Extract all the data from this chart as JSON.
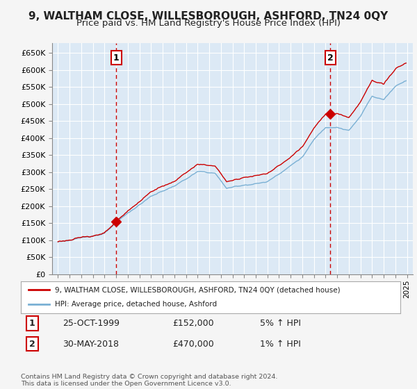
{
  "title": "9, WALTHAM CLOSE, WILLESBOROUGH, ASHFORD, TN24 0QY",
  "subtitle": "Price paid vs. HM Land Registry's House Price Index (HPI)",
  "ylim": [
    0,
    680000
  ],
  "yticks": [
    0,
    50000,
    100000,
    150000,
    200000,
    250000,
    300000,
    350000,
    400000,
    450000,
    500000,
    550000,
    600000,
    650000
  ],
  "ytick_labels": [
    "£0",
    "£50K",
    "£100K",
    "£150K",
    "£200K",
    "£250K",
    "£300K",
    "£350K",
    "£400K",
    "£450K",
    "£500K",
    "£550K",
    "£600K",
    "£650K"
  ],
  "sale1_date": 2000.0,
  "sale1_price": 152000,
  "sale1_label": "1",
  "sale2_date": 2018.42,
  "sale2_price": 470000,
  "sale2_label": "2",
  "line_color_price": "#cc0000",
  "line_color_hpi": "#7ab0d4",
  "plot_bg_color": "#dce9f5",
  "background_color": "#f5f5f5",
  "grid_color": "#ffffff",
  "legend_line1": "9, WALTHAM CLOSE, WILLESBOROUGH, ASHFORD, TN24 0QY (detached house)",
  "legend_line2": "HPI: Average price, detached house, Ashford",
  "table_row1": [
    "1",
    "25-OCT-1999",
    "£152,000",
    "5% ↑ HPI"
  ],
  "table_row2": [
    "2",
    "30-MAY-2018",
    "£470,000",
    "1% ↑ HPI"
  ],
  "footer": "Contains HM Land Registry data © Crown copyright and database right 2024.\nThis data is licensed under the Open Government Licence v3.0.",
  "title_fontsize": 11,
  "subtitle_fontsize": 9.5,
  "xlim_left": 1994.5,
  "xlim_right": 2025.5
}
